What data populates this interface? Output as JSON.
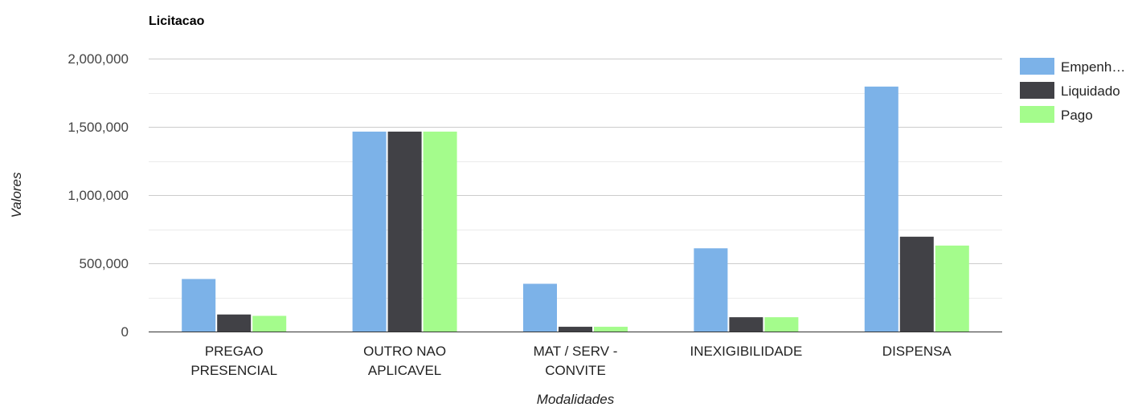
{
  "chart_data": {
    "type": "bar",
    "title": "Licitacao",
    "xlabel": "Modalidades",
    "ylabel": "Valores",
    "ylim": [
      0,
      2000000
    ],
    "yticks": [
      0,
      500000,
      1000000,
      1500000,
      2000000
    ],
    "ytick_labels": [
      "0",
      "500,000",
      "1,000,000",
      "1,500,000",
      "2,000,000"
    ],
    "minor_gridlines": true,
    "legend_position": "right",
    "categories": [
      [
        "PREGAO",
        "PRESENCIAL"
      ],
      [
        "OUTRO NAO",
        "APLICAVEL"
      ],
      [
        "MAT / SERV -",
        "CONVITE"
      ],
      [
        "INEXIGIBILIDADE"
      ],
      [
        "DISPENSA"
      ]
    ],
    "series": [
      {
        "name": "Empenh…",
        "color": "#7cb2e8",
        "values": [
          385000,
          1465000,
          350000,
          610000,
          1795000
        ]
      },
      {
        "name": "Liquidado",
        "color": "#414146",
        "values": [
          125000,
          1465000,
          35000,
          105000,
          695000
        ]
      },
      {
        "name": "Pago",
        "color": "#a4fc8c",
        "values": [
          115000,
          1465000,
          35000,
          105000,
          630000
        ]
      }
    ]
  }
}
